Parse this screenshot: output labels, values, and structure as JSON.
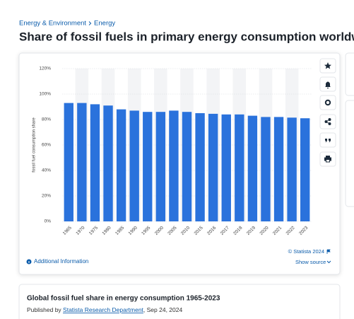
{
  "breadcrumb": [
    "Energy & Environment",
    "Energy"
  ],
  "page_title": "Share of fossil fuels in primary energy consumption worldwide",
  "chart_data": {
    "type": "bar",
    "y_label": "fossil fuel consumption share",
    "categories": [
      "1965",
      "1970",
      "1975",
      "1980",
      "1985",
      "1990",
      "1995",
      "2000",
      "2005",
      "2010",
      "2015",
      "2016",
      "2017",
      "2018",
      "2019",
      "2020",
      "2021",
      "2022",
      "2023"
    ],
    "values": [
      93,
      93,
      92,
      91,
      88,
      87,
      86,
      86,
      87,
      86,
      85,
      84.5,
      84,
      84,
      83,
      82,
      82,
      81.5,
      81
    ],
    "color": "#2a72dc",
    "ylim": [
      0,
      120
    ],
    "yticks": [
      {
        "value": 0,
        "label": "0%"
      },
      {
        "value": 20,
        "label": "20%"
      },
      {
        "value": 40,
        "label": "40%"
      },
      {
        "value": 60,
        "label": "60%"
      },
      {
        "value": 80,
        "label": "80%"
      },
      {
        "value": 100,
        "label": "100%"
      },
      {
        "value": 120,
        "label": "120%"
      }
    ],
    "grid": true
  },
  "footer": {
    "additional_info": "Additional Information",
    "copyright": "© Statista 2024",
    "show_source": "Show source"
  },
  "details": {
    "title": "Global fossil fuel share in energy consumption 1965-2023",
    "published_by": "Published by",
    "publisher": "Statista Research Department",
    "date": ", Sep 24, 2024"
  }
}
